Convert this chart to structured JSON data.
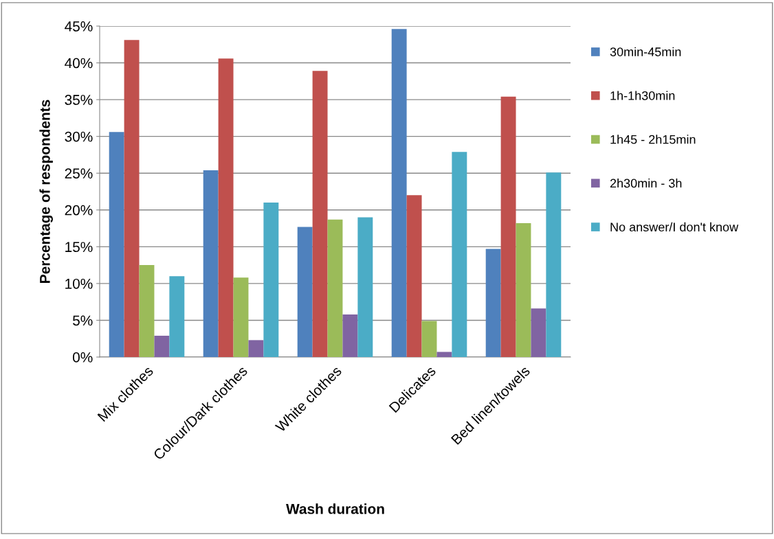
{
  "chart_data": {
    "type": "bar",
    "xlabel": "Wash duration",
    "ylabel": "Percentage of respondents",
    "categories": [
      "Mix clothes",
      "Colour/Dark clothes",
      "White clothes",
      "Delicates",
      "Bed linen/towels"
    ],
    "series": [
      {
        "name": "30min-45min",
        "color": "#4f81bd",
        "values": [
          30.6,
          25.4,
          17.7,
          44.6,
          14.7
        ]
      },
      {
        "name": "1h-1h30min",
        "color": "#c0504d",
        "values": [
          43.1,
          40.6,
          38.9,
          22.0,
          35.4
        ]
      },
      {
        "name": "1h45 - 2h15min",
        "color": "#9bbb59",
        "values": [
          12.5,
          10.8,
          18.7,
          4.9,
          18.2
        ]
      },
      {
        "name": "2h30min - 3h",
        "color": "#8064a2",
        "values": [
          2.9,
          2.3,
          5.8,
          0.7,
          6.6
        ]
      },
      {
        "name": "No answer/I don't know",
        "color": "#4bacc6",
        "values": [
          11.0,
          21.0,
          19.0,
          27.9,
          25.1
        ]
      }
    ],
    "ylim": [
      0,
      45
    ],
    "yticks": [
      {
        "value": 0,
        "label": "0%"
      },
      {
        "value": 5,
        "label": "5%"
      },
      {
        "value": 10,
        "label": "10%"
      },
      {
        "value": 15,
        "label": "15%"
      },
      {
        "value": 20,
        "label": "20%"
      },
      {
        "value": 25,
        "label": "25%"
      },
      {
        "value": 30,
        "label": "30%"
      },
      {
        "value": 35,
        "label": "35%"
      },
      {
        "value": 40,
        "label": "40%"
      },
      {
        "value": 45,
        "label": "45%"
      }
    ],
    "grid": "y",
    "legend": "right"
  }
}
